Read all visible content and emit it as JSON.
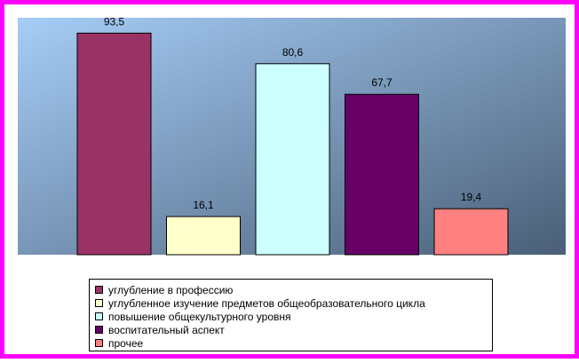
{
  "chart_data": {
    "type": "bar",
    "title": "",
    "xlabel": "",
    "ylabel": "",
    "ylim": [
      0,
      100
    ],
    "grid": false,
    "legend_position": "bottom",
    "data_labels": [
      "93,5",
      "16,1",
      "80,6",
      "67,7",
      "19,4"
    ],
    "series": [
      {
        "name": "углубление в профессию",
        "value": 93.5,
        "color": "#993366"
      },
      {
        "name": "углубленное изучение предметов общеобразовательного цикла",
        "value": 16.1,
        "color": "#ffffcc"
      },
      {
        "name": "повышение общекультурного уровня",
        "value": 80.6,
        "color": "#ccffff"
      },
      {
        "name": "воспитательный аспект",
        "value": 67.7,
        "color": "#660066"
      },
      {
        "name": "прочее",
        "value": 19.4,
        "color": "#ff8080"
      }
    ]
  },
  "colors": {
    "frame_border": "#ff00ff",
    "plot_gradient_start": "#a6cdf7",
    "plot_gradient_end": "#4a5f77"
  }
}
